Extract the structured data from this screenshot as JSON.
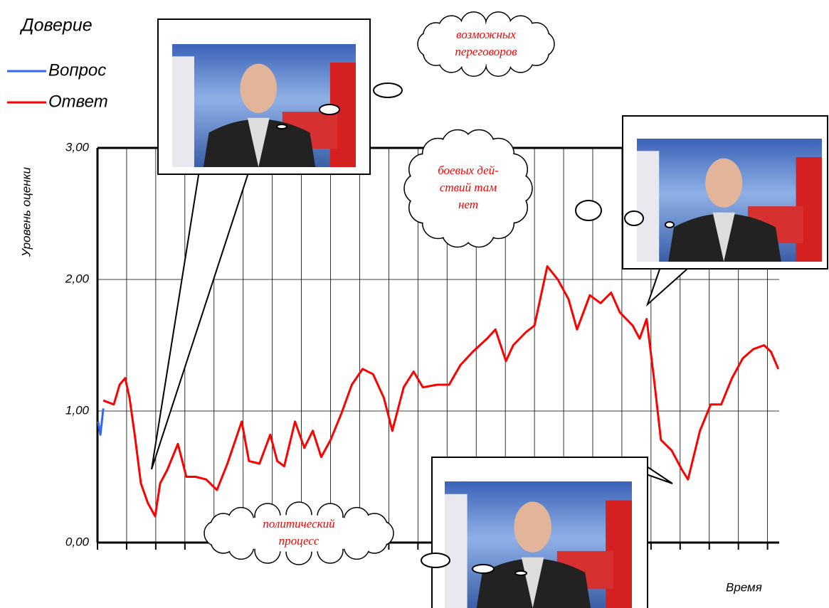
{
  "chart_data": {
    "type": "line",
    "title": "Доверие",
    "x_label": "Время",
    "y_label": "Уровень оценки",
    "xlim": [
      0,
      23.4
    ],
    "xticks": [
      0,
      1,
      2,
      3,
      4,
      5,
      6,
      7,
      8,
      9,
      10,
      11,
      12,
      13,
      14,
      15,
      16,
      17,
      18,
      19,
      20,
      21,
      22,
      23
    ],
    "ylim": [
      0,
      3
    ],
    "yticks": [
      {
        "value": 0,
        "label": "0,00"
      },
      {
        "value": 1,
        "label": "1,00"
      },
      {
        "value": 2,
        "label": "2,00"
      },
      {
        "value": 3,
        "label": "3,00"
      }
    ],
    "grid": true,
    "series": [
      {
        "name": "Вопрос",
        "color": "#3366ff",
        "x": [
          0.02,
          0.1,
          0.2
        ],
        "values": [
          0.92,
          0.82,
          1.02
        ]
      },
      {
        "name": "Ответ",
        "color": "#ff0000",
        "x": [
          0.2,
          0.56,
          0.76,
          0.95,
          1.1,
          1.29,
          1.49,
          1.73,
          1.98,
          2.15,
          2.39,
          2.76,
          3.05,
          3.37,
          3.73,
          4.1,
          4.46,
          4.95,
          5.2,
          5.56,
          5.93,
          6.17,
          6.41,
          6.78,
          7.1,
          7.39,
          7.68,
          8.0,
          8.37,
          8.73,
          9.1,
          9.46,
          9.83,
          10.12,
          10.51,
          10.85,
          11.17,
          11.66,
          12.07,
          12.46,
          12.88,
          13.37,
          13.66,
          14.02,
          14.27,
          14.71,
          15.0,
          15.44,
          15.8,
          16.17,
          16.46,
          16.9,
          17.27,
          17.63,
          17.93,
          18.37,
          18.61,
          18.85,
          19.1,
          19.34,
          19.71,
          20.07,
          20.27,
          20.68,
          21.05,
          21.41,
          21.78,
          22.15,
          22.51,
          22.88,
          23.12,
          23.37
        ],
        "values": [
          1.08,
          1.05,
          1.2,
          1.25,
          1.1,
          0.8,
          0.45,
          0.3,
          0.2,
          0.45,
          0.55,
          0.75,
          0.5,
          0.5,
          0.48,
          0.4,
          0.6,
          0.92,
          0.62,
          0.6,
          0.82,
          0.62,
          0.58,
          0.92,
          0.72,
          0.85,
          0.65,
          0.78,
          0.98,
          1.2,
          1.32,
          1.28,
          1.1,
          0.85,
          1.18,
          1.3,
          1.18,
          1.2,
          1.2,
          1.35,
          1.45,
          1.55,
          1.62,
          1.38,
          1.5,
          1.6,
          1.65,
          2.1,
          2.0,
          1.85,
          1.62,
          1.88,
          1.82,
          1.9,
          1.75,
          1.65,
          1.55,
          1.7,
          1.25,
          0.78,
          0.7,
          0.55,
          0.48,
          0.85,
          1.05,
          1.05,
          1.25,
          1.4,
          1.47,
          1.5,
          1.45,
          1.32
        ]
      }
    ],
    "annotations": [
      {
        "lines": [
          "возможных",
          "переговоров"
        ]
      },
      {
        "lines": [
          "боевых дей-",
          "ствий там",
          "нет"
        ]
      },
      {
        "lines": [
          "политический",
          "процесс"
        ]
      }
    ]
  }
}
